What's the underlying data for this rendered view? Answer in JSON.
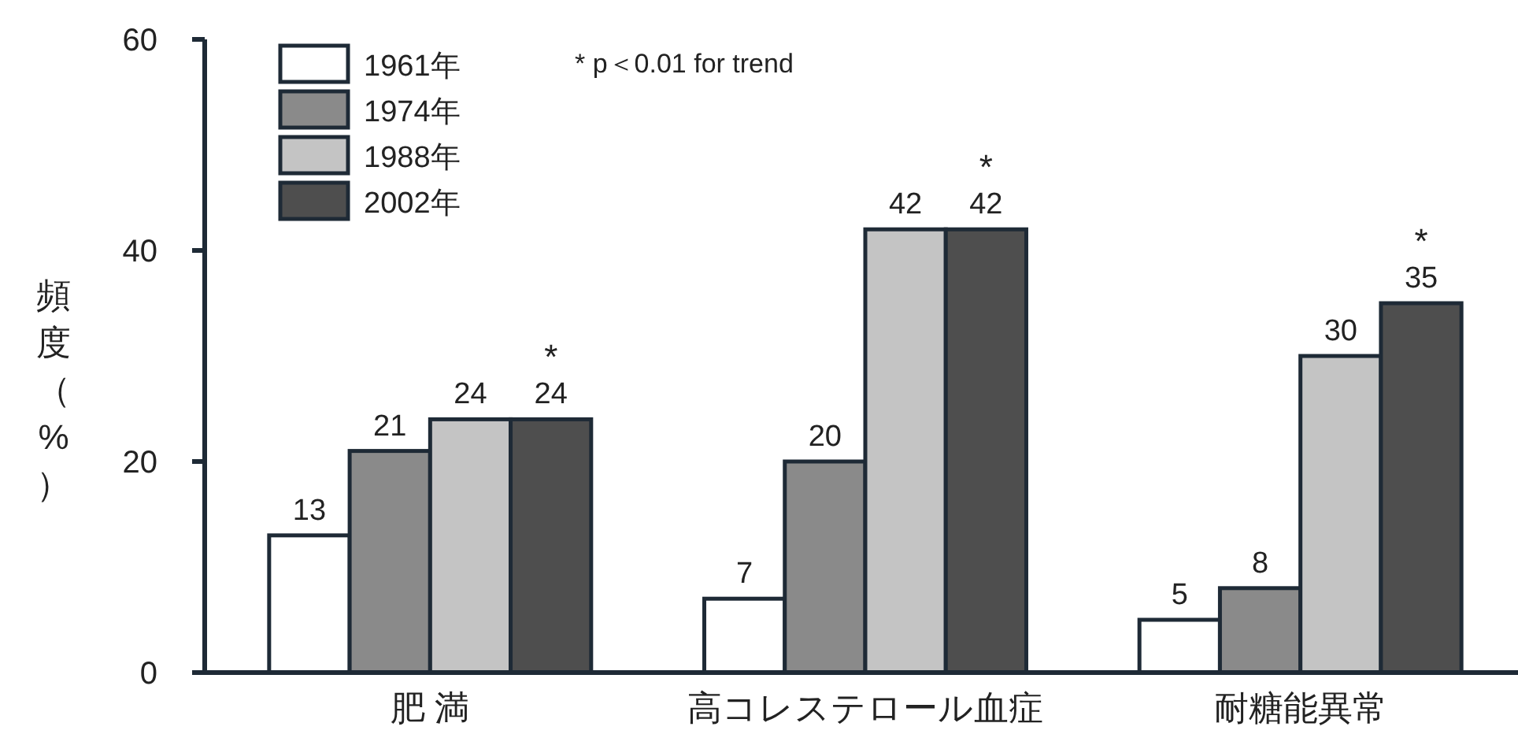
{
  "chart_data": {
    "type": "bar",
    "ylabel": "頻度（%）",
    "categories": [
      "肥 満",
      "高コレステロール血症",
      "耐糖能異常"
    ],
    "series": [
      {
        "name": "1961年",
        "color": "#ffffff",
        "values": [
          13,
          7,
          5
        ]
      },
      {
        "name": "1974年",
        "color": "#8a8a8a",
        "values": [
          21,
          20,
          8
        ]
      },
      {
        "name": "1988年",
        "color": "#c4c4c4",
        "values": [
          24,
          42,
          30
        ]
      },
      {
        "name": "2002年",
        "color": "#4e4e4e",
        "values": [
          24,
          42,
          35
        ]
      }
    ],
    "ylim": [
      0,
      60
    ],
    "yticks": [
      0,
      20,
      40,
      60
    ],
    "data_labels": true,
    "legend": "top left",
    "annotations": [
      "* p＜0.01 for trend",
      "*",
      "*",
      "*"
    ]
  }
}
